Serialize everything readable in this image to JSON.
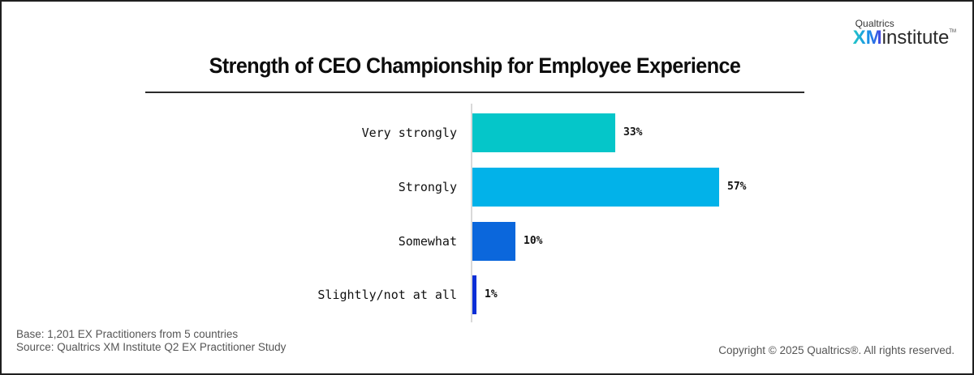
{
  "logo": {
    "brand": "Qualtrics",
    "xm": "XM",
    "institute": "institute",
    "tm": "TM"
  },
  "title": "Strength of CEO Championship for Employee Experience",
  "colors": {
    "very_strongly": "#05c6c9",
    "strongly": "#02b2e9",
    "somewhat": "#0b67dc",
    "slightly": "#0b2ed6",
    "axis": "#d9d9d9"
  },
  "chart_data": {
    "type": "bar",
    "orientation": "horizontal",
    "title": "Strength of CEO Championship for Employee Experience",
    "categories": [
      "Very strongly",
      "Strongly",
      "Somewhat",
      "Slightly/not at all"
    ],
    "values": [
      33,
      57,
      10,
      1
    ],
    "value_labels": [
      "33%",
      "57%",
      "10%",
      "1%"
    ],
    "xlabel": "",
    "ylabel": "",
    "xlim": [
      0,
      100
    ],
    "grid": false,
    "legend": null,
    "unit": "%"
  },
  "footer": {
    "base": "Base: 1,201 EX Practitioners from 5 countries",
    "source": "Source: Qualtrics XM Institute Q2 EX Practitioner Study",
    "copyright": "Copyright © 2025 Qualtrics®. All rights reserved."
  }
}
